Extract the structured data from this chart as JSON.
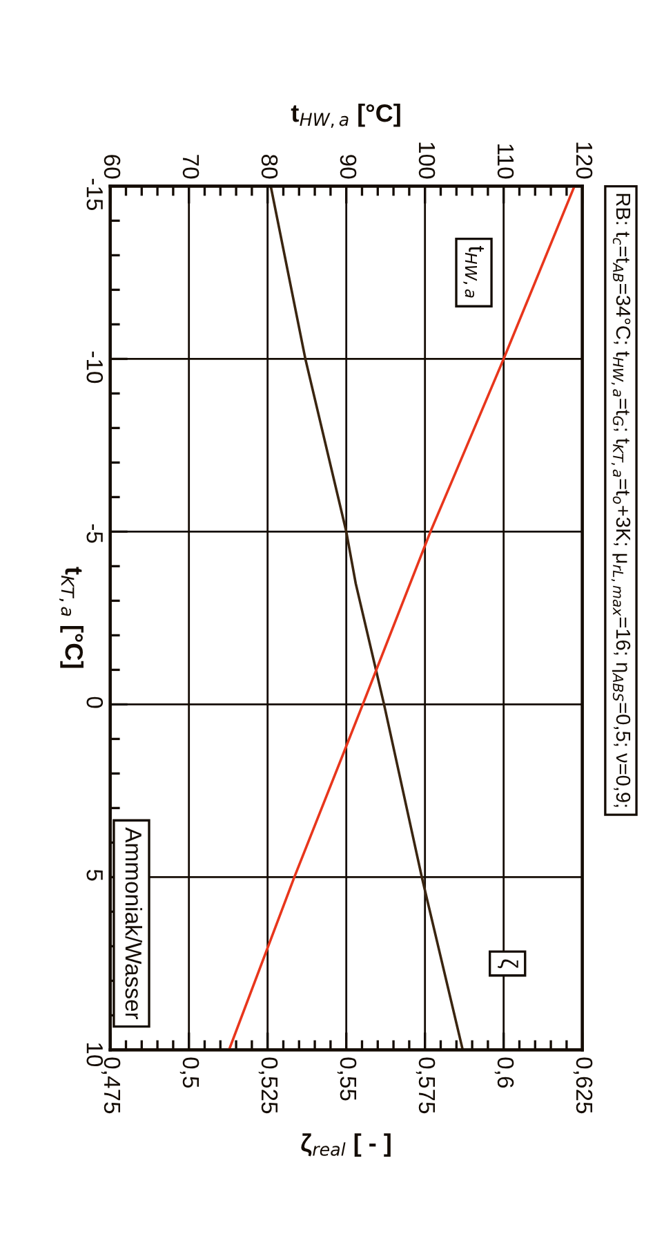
{
  "chart_data": {
    "type": "line",
    "ylabel": "t$_{KT,a}$ [°C]",
    "x2label": "t$_{HW,a}$ [°C]",
    "xlabel": "ζ$_{real}$ [ - ]",
    "ylim": [
      10,
      -15
    ],
    "yticks": [
      -15,
      -10,
      -5,
      0,
      5,
      10
    ],
    "x2lim": [
      60,
      120
    ],
    "x2ticks": [
      60,
      70,
      80,
      90,
      100,
      110,
      120
    ],
    "xlim": [
      0.475,
      0.625
    ],
    "xticks": [
      {
        "value": 0.475,
        "label": "0,475"
      },
      {
        "value": 0.5,
        "label": "0,5"
      },
      {
        "value": 0.525,
        "label": "0,525"
      },
      {
        "value": 0.55,
        "label": "0,55"
      },
      {
        "value": 0.575,
        "label": "0,575"
      },
      {
        "value": 0.6,
        "label": "0,6"
      },
      {
        "value": 0.625,
        "label": "0,625"
      }
    ],
    "series": [
      {
        "name": "t$_{HW,a}$",
        "color": "#e8361c",
        "axis": "x2",
        "x": [
          119,
          110,
          103.5,
          100.7,
          92.1,
          83.4,
          75.1
        ],
        "values": [
          -15,
          -10,
          -6.5,
          -5,
          0,
          5,
          10
        ]
      },
      {
        "name": "ζ",
        "color": "#3a2510",
        "x": [
          0.526,
          0.537,
          0.55,
          0.553,
          0.562,
          0.574,
          0.587
        ],
        "values": [
          -15,
          -10,
          -5,
          -3.5,
          0,
          5,
          10
        ]
      }
    ],
    "annotations": [
      "RB: t$_{c}$=t$_{AB}$=34°C; t$_{HW,a}$=t$_{G}$; t$_{KT,a}$=t$_{o}$+3K; μ$_{rL,max}$=16; η$_{ABS}$=0,5; ν=0,9;",
      "Ammoniak/Wasser"
    ],
    "grid": true,
    "legend": false,
    "marker": "none",
    "line_style": "solid"
  }
}
